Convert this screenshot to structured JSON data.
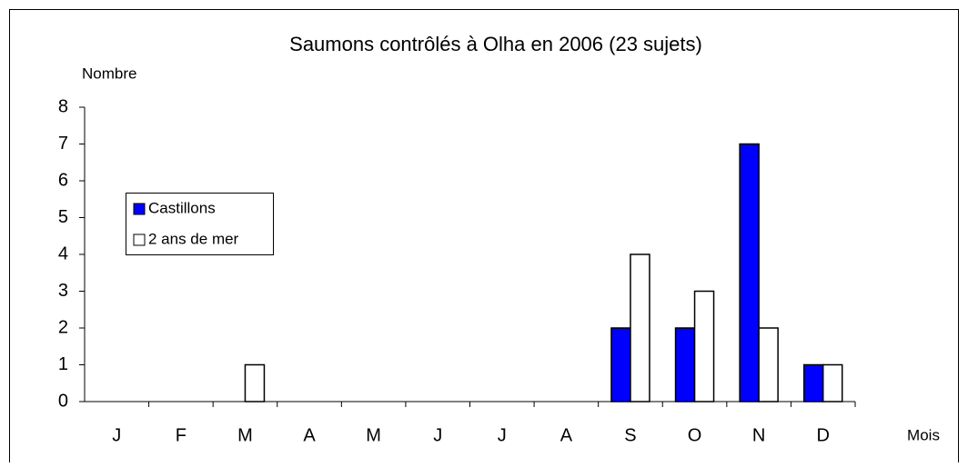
{
  "chart_data": {
    "type": "bar",
    "title": "Saumons contrôlés à Olha en 2006 (23 sujets)",
    "y_label": "Nombre",
    "x_label": "Mois",
    "categories": [
      "J",
      "F",
      "M",
      "A",
      "M",
      "J",
      "J",
      "A",
      "S",
      "O",
      "N",
      "D"
    ],
    "series": [
      {
        "name": "Castillons",
        "color": "#0000ff",
        "values": [
          0,
          0,
          0,
          0,
          0,
          0,
          0,
          0,
          2,
          2,
          7,
          1
        ]
      },
      {
        "name": "2 ans de mer",
        "color": "#ffffff",
        "values": [
          0,
          0,
          1,
          0,
          0,
          0,
          0,
          0,
          4,
          3,
          2,
          1
        ]
      }
    ],
    "ylim": [
      0,
      8
    ],
    "yticks": [
      0,
      1,
      2,
      3,
      4,
      5,
      6,
      7,
      8
    ],
    "grid": false,
    "legend": "left"
  }
}
